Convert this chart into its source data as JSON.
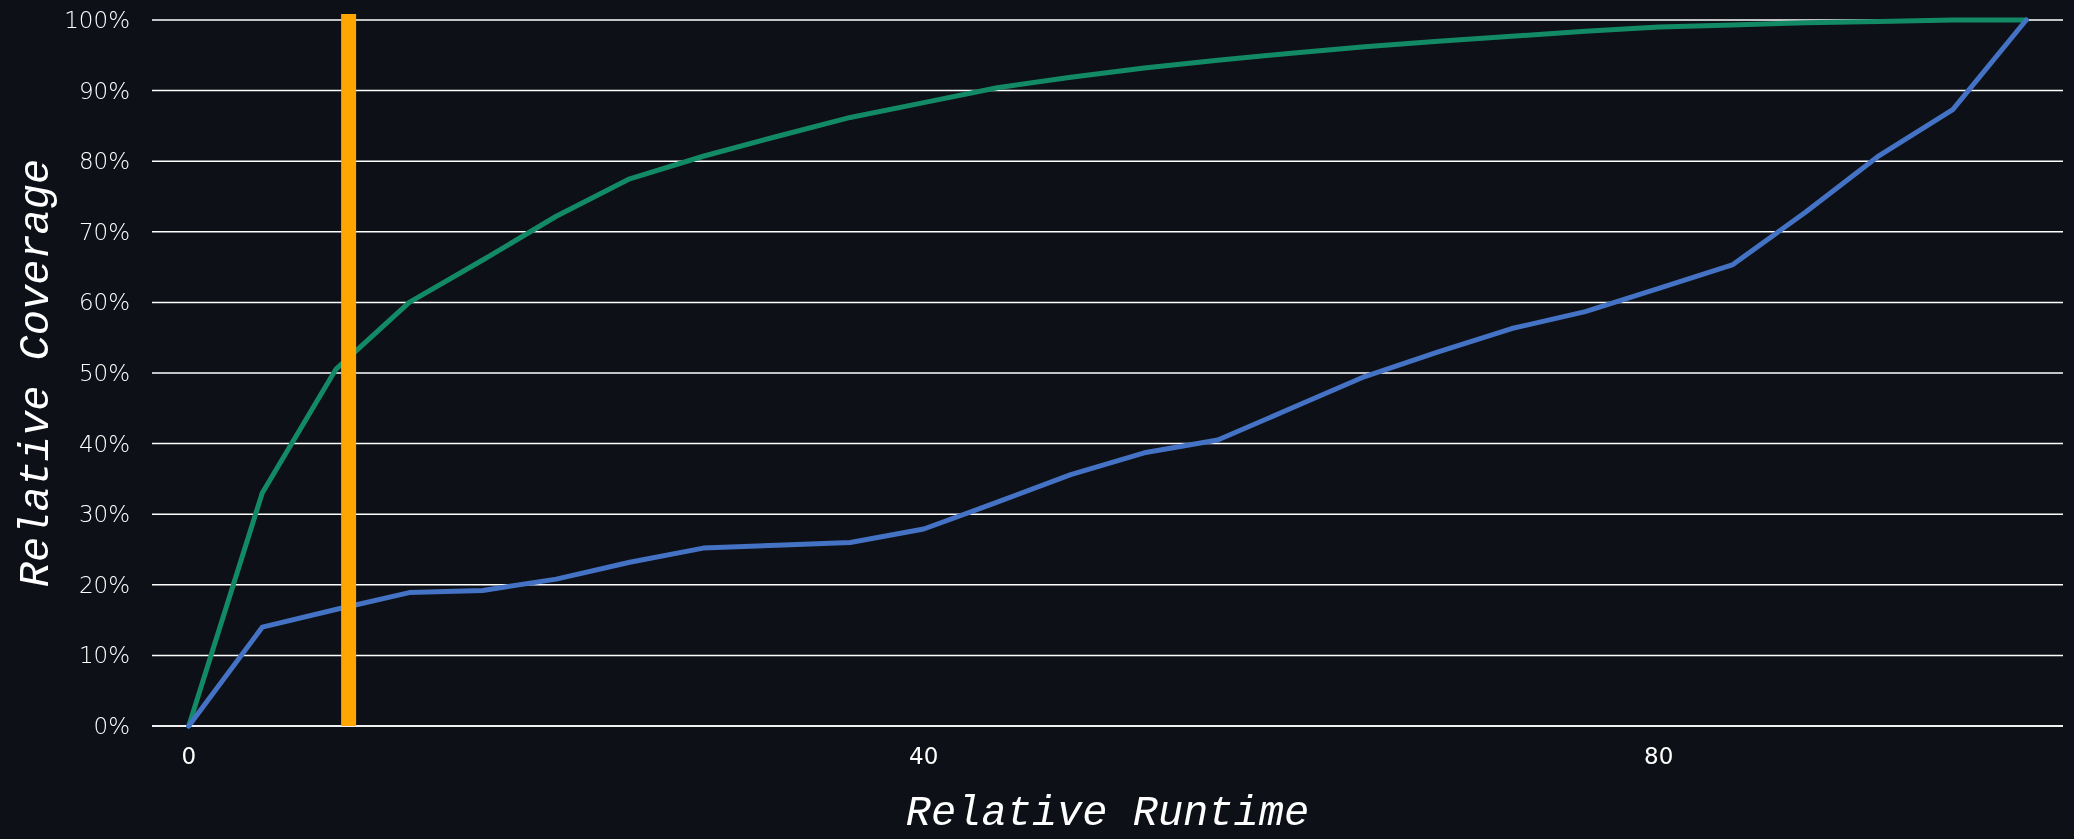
{
  "chart_data": {
    "type": "line",
    "xlabel": "Relative Runtime",
    "ylabel": "Relative Coverage",
    "x": [
      0,
      4,
      8,
      12,
      16,
      20,
      24,
      28,
      32,
      36,
      40,
      44,
      48,
      52,
      56,
      60,
      64,
      68,
      72,
      76,
      80,
      84,
      88,
      92,
      96,
      100
    ],
    "xlim": [
      -2,
      102
    ],
    "xticks": [
      0,
      40,
      80
    ],
    "ylim": [
      0,
      100
    ],
    "yticks": [
      {
        "value": 0,
        "label": "0%"
      },
      {
        "value": 10,
        "label": "10%"
      },
      {
        "value": 20,
        "label": "20%"
      },
      {
        "value": 30,
        "label": "30%"
      },
      {
        "value": 40,
        "label": "40%"
      },
      {
        "value": 50,
        "label": "50%"
      },
      {
        "value": 60,
        "label": "60%"
      },
      {
        "value": 70,
        "label": "70%"
      },
      {
        "value": 80,
        "label": "80%"
      },
      {
        "value": 90,
        "label": "90%"
      },
      {
        "value": 100,
        "label": "100%"
      }
    ],
    "grid": "y",
    "series": [
      {
        "color": "#138a66",
        "values": [
          0,
          33,
          50.5,
          60,
          66,
          72.2,
          77.5,
          80.7,
          83.5,
          86.2,
          88.3,
          90.4,
          91.9,
          93.2,
          94.3,
          95.3,
          96.2,
          97,
          97.7,
          98.4,
          99,
          99.3,
          99.6,
          99.8,
          100,
          100
        ]
      },
      {
        "color": "#4472c4",
        "values": [
          0,
          14,
          16.5,
          18.9,
          19.2,
          20.8,
          23.2,
          25.2,
          25.6,
          26,
          27.9,
          31.7,
          35.6,
          38.7,
          40.5,
          45,
          49.5,
          53,
          56.3,
          58.7,
          62,
          65.3,
          72.8,
          80.8,
          87.3,
          100
        ]
      }
    ],
    "ref_lines": [
      {
        "axis": "x",
        "value": 8.7,
        "color": "#ffa500"
      }
    ]
  }
}
